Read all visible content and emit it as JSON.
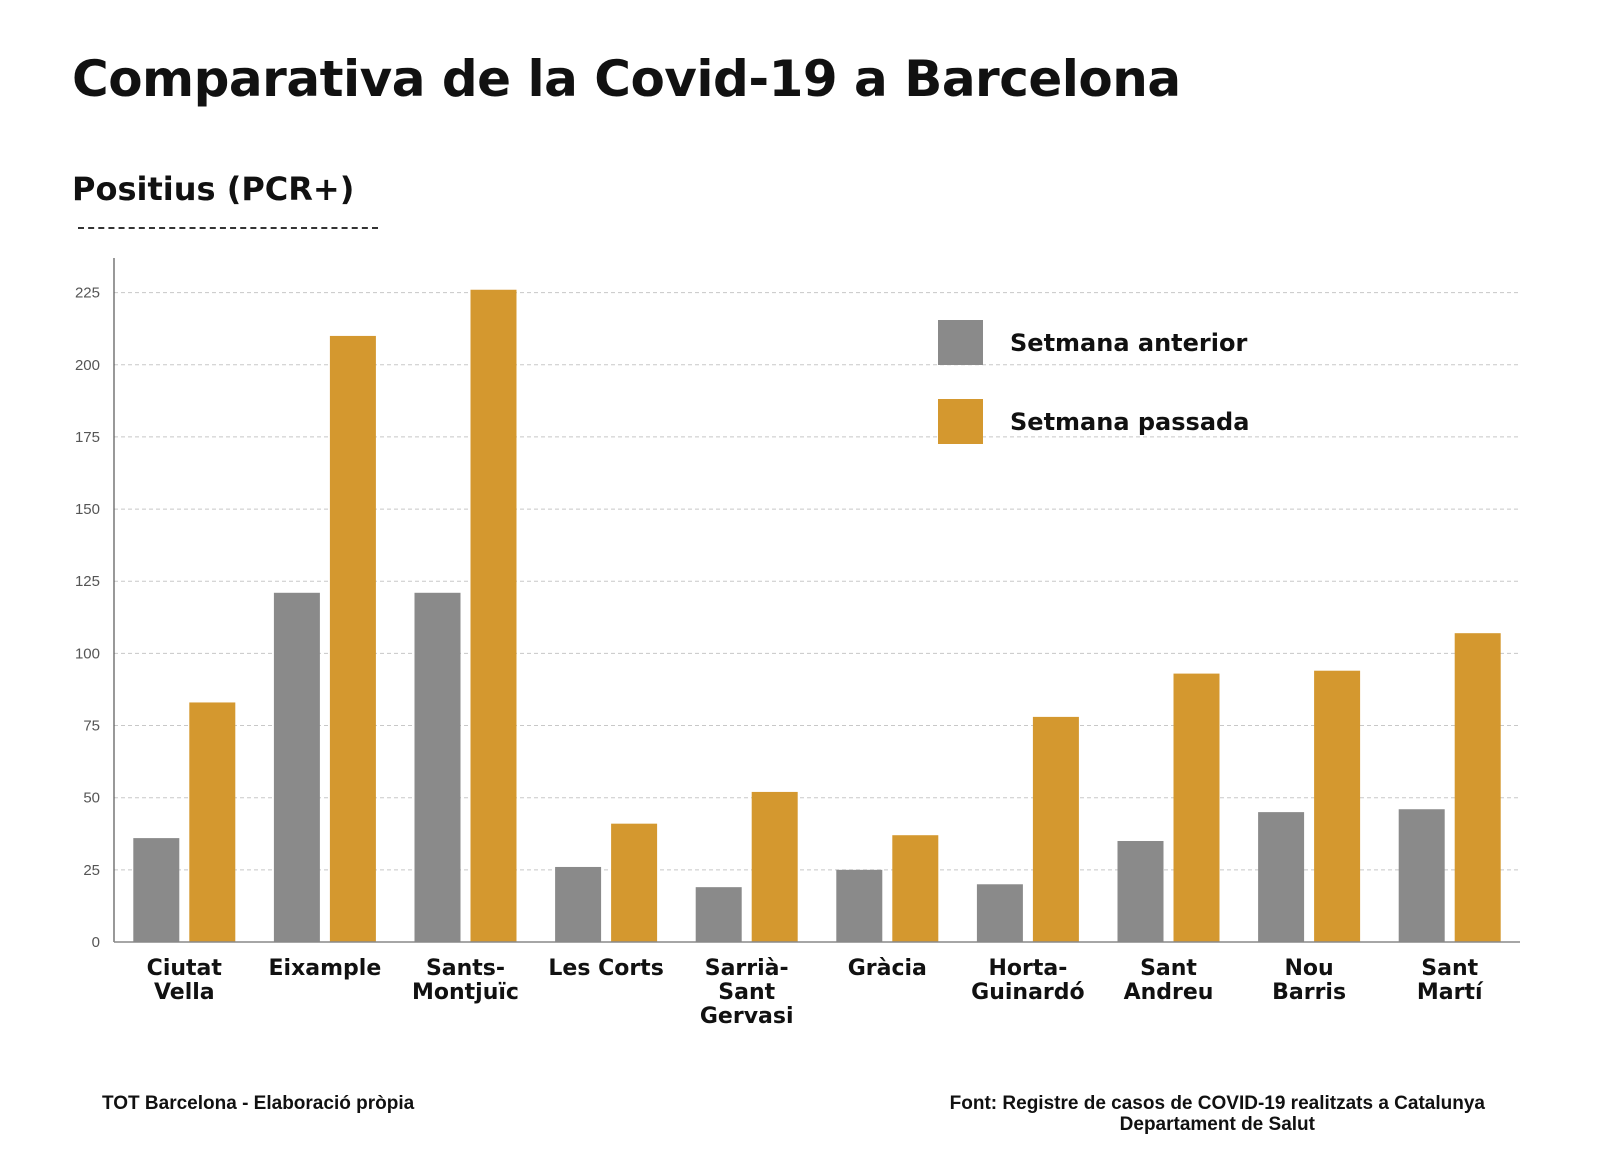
{
  "header": {
    "title": "Comparativa de la Covid-19 a Barcelona",
    "subtitle": "Positius (PCR+)"
  },
  "footer": {
    "left": "TOT Barcelona - Elaboració pròpia",
    "source_line1": "Font: Registre de casos de COVID-19 realitzats a Catalunya",
    "source_line2": "Departament de Salut"
  },
  "chart_data": {
    "type": "bar",
    "title": "Positius (PCR+)",
    "xlabel": "",
    "ylabel": "",
    "ylim": [
      0,
      237
    ],
    "yticks": [
      0,
      25,
      50,
      75,
      100,
      125,
      150,
      175,
      200,
      225
    ],
    "grid": true,
    "legend_position": "top-right",
    "categories": [
      [
        "Ciutat",
        "Vella"
      ],
      [
        "Eixample"
      ],
      [
        "Sants-",
        "Montjuïc"
      ],
      [
        "Les Corts"
      ],
      [
        "Sarrià-",
        "Sant",
        "Gervasi"
      ],
      [
        "Gràcia"
      ],
      [
        "Horta-",
        "Guinardó"
      ],
      [
        "Sant",
        "Andreu"
      ],
      [
        "Nou",
        "Barris"
      ],
      [
        "Sant",
        "Martí"
      ]
    ],
    "series": [
      {
        "name": "Setmana anterior",
        "color": "#8a8a8a",
        "values": [
          36,
          121,
          121,
          26,
          19,
          25,
          20,
          35,
          45,
          46
        ]
      },
      {
        "name": "Setmana passada",
        "color": "#d4982f",
        "values": [
          83,
          210,
          226,
          41,
          52,
          37,
          78,
          93,
          94,
          107
        ]
      }
    ]
  }
}
